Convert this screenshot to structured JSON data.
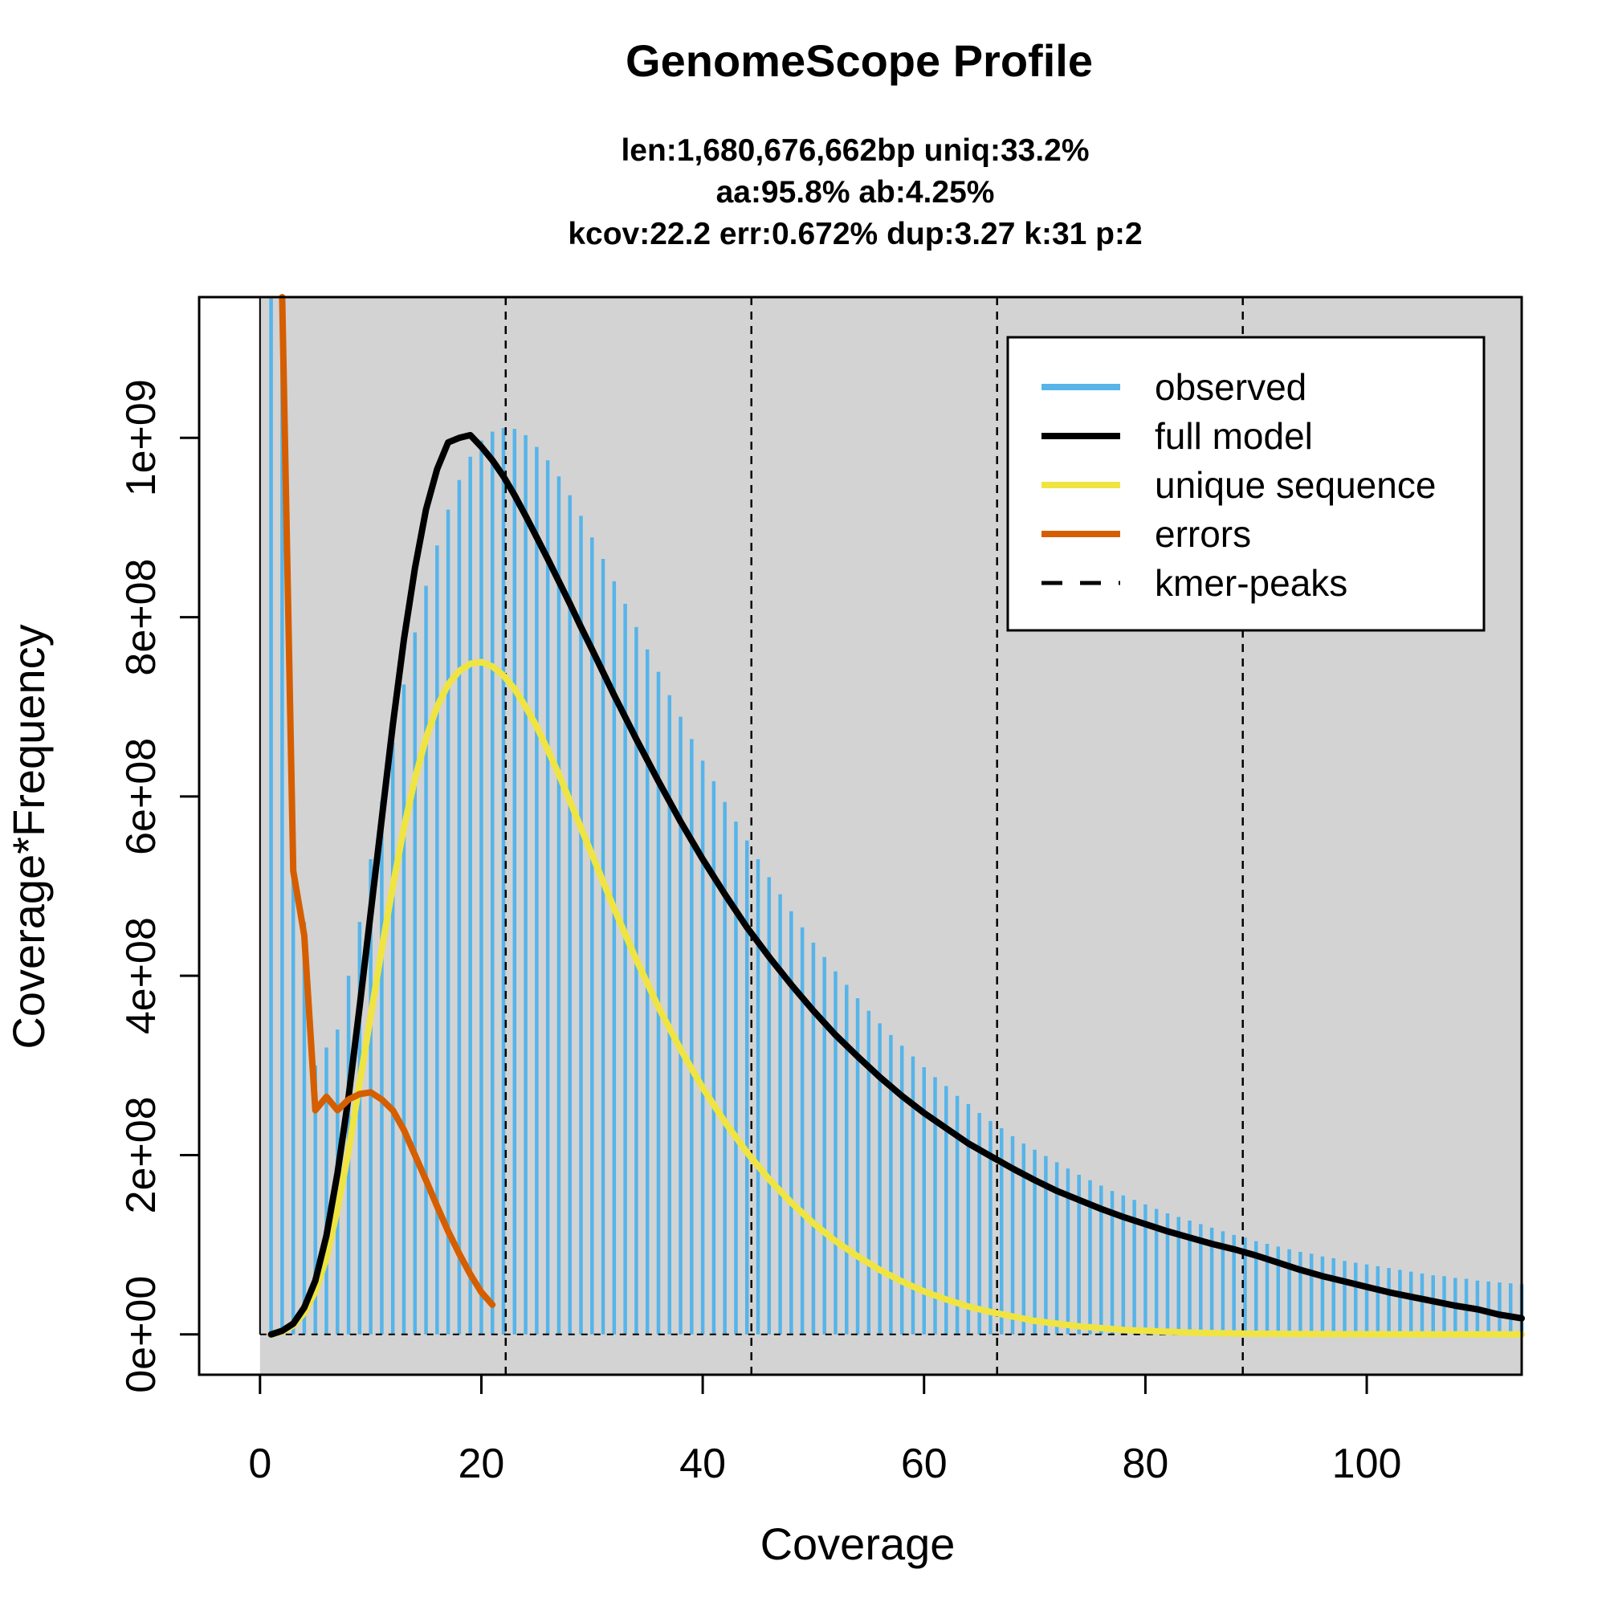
{
  "chart_data": {
    "type": "bar",
    "title": "GenomeScope Profile",
    "subtitle_lines": [
      "len:1,680,676,662bp uniq:33.2%",
      "aa:95.8% ab:4.25%",
      "kcov:22.2 err:0.672%  dup:3.27  k:31 p:2"
    ],
    "xlabel": "Coverage",
    "ylabel": "Coverage*Frequency",
    "xlim": [
      -5.5,
      114
    ],
    "ylim": [
      -45000000,
      1157000000
    ],
    "x_ticks": [
      0,
      20,
      40,
      60,
      80,
      100
    ],
    "x_tick_labels": [
      "0",
      "20",
      "40",
      "60",
      "80",
      "100"
    ],
    "y_ticks": [
      0,
      200000000,
      400000000,
      600000000,
      800000000,
      1000000000
    ],
    "y_tick_labels": [
      "0e+00",
      "2e+08",
      "4e+08",
      "6e+08",
      "8e+08",
      "1e+09"
    ],
    "kmer_peaks": [
      22.2,
      44.4,
      66.6,
      88.8
    ],
    "colors": {
      "observed": "#56b4e9",
      "full_model": "#000000",
      "unique_sequence": "#f0e442",
      "errors": "#d55e00",
      "panel_background": "#d3d3d3",
      "baseline_bar_region": "#ffffff"
    },
    "legend": {
      "placement": "top-right",
      "entries": [
        {
          "label": "observed",
          "color": "#56b4e9",
          "style": "solid"
        },
        {
          "label": "full model",
          "color": "#000000",
          "style": "solid"
        },
        {
          "label": "unique sequence",
          "color": "#f0e442",
          "style": "solid"
        },
        {
          "label": "errors",
          "color": "#d55e00",
          "style": "solid"
        },
        {
          "label": "kmer-peaks",
          "color": "#000000",
          "style": "dashed"
        }
      ]
    },
    "observed": {
      "x": [
        1,
        2,
        3,
        4,
        5,
        6,
        7,
        8,
        9,
        10,
        11,
        12,
        13,
        14,
        15,
        16,
        17,
        18,
        19,
        20,
        21,
        22,
        23,
        24,
        25,
        26,
        27,
        28,
        29,
        30,
        31,
        32,
        33,
        34,
        35,
        36,
        37,
        38,
        39,
        40,
        41,
        42,
        43,
        44,
        45,
        46,
        47,
        48,
        49,
        50,
        51,
        52,
        53,
        54,
        55,
        56,
        57,
        58,
        59,
        60,
        61,
        62,
        63,
        64,
        65,
        66,
        67,
        68,
        69,
        70,
        71,
        72,
        73,
        74,
        75,
        76,
        77,
        78,
        79,
        80,
        81,
        82,
        83,
        84,
        85,
        86,
        87,
        88,
        89,
        90,
        91,
        92,
        93,
        94,
        95,
        96,
        97,
        98,
        99,
        100,
        101,
        102,
        103,
        104,
        105,
        106,
        107,
        108,
        109,
        110,
        111,
        112,
        113,
        114
      ],
      "values": [
        1200000000,
        1200000000,
        520000000,
        460000000,
        300000000,
        320000000,
        340000000,
        400000000,
        460000000,
        530000000,
        595000000,
        660000000,
        725000000,
        783000000,
        835000000,
        880000000,
        920000000,
        953000000,
        979000000,
        997000000,
        1007000000,
        1011000000,
        1010000000,
        1003000000,
        990000000,
        975000000,
        957000000,
        936000000,
        913000000,
        889000000,
        865000000,
        840000000,
        815000000,
        789000000,
        764000000,
        739000000,
        713000000,
        689000000,
        664000000,
        640000000,
        617000000,
        594000000,
        572000000,
        551000000,
        530000000,
        510000000,
        491000000,
        472000000,
        454000000,
        437000000,
        421000000,
        405000000,
        390000000,
        375000000,
        361000000,
        347000000,
        334000000,
        322000000,
        310000000,
        298000000,
        287000000,
        277000000,
        266000000,
        257000000,
        247000000,
        238000000,
        230000000,
        221000000,
        213000000,
        206000000,
        199000000,
        192000000,
        185000000,
        178000000,
        172000000,
        166000000,
        160000000,
        155000000,
        150000000,
        145000000,
        140000000,
        135000000,
        131000000,
        127000000,
        123000000,
        119000000,
        115000000,
        111000000,
        108000000,
        104000000,
        101000000,
        98000000,
        95000000,
        92000000,
        90000000,
        87000000,
        85000000,
        82000000,
        80000000,
        78000000,
        76000000,
        74000000,
        72000000,
        70000000,
        68000000,
        66000000,
        65000000,
        63000000,
        62000000,
        60000000,
        59000000,
        58000000,
        57000000,
        56000000
      ]
    },
    "full_model": {
      "x": [
        1,
        2,
        3,
        4,
        5,
        6,
        7,
        8,
        9,
        10,
        11,
        12,
        13,
        14,
        15,
        16,
        17,
        18,
        19,
        20,
        21,
        22,
        23,
        24,
        25,
        26,
        27,
        28,
        29,
        30,
        32,
        34,
        36,
        38,
        40,
        42,
        44,
        46,
        48,
        50,
        52,
        54,
        56,
        58,
        60,
        62,
        64,
        66,
        68,
        70,
        72,
        74,
        76,
        78,
        80,
        82,
        84,
        86,
        88,
        90,
        92,
        94,
        96,
        98,
        100,
        102,
        104,
        106,
        108,
        110,
        112,
        114
      ],
      "values": [
        0,
        4000000,
        12000000,
        30000000,
        60000000,
        110000000,
        180000000,
        265000000,
        365000000,
        470000000,
        575000000,
        680000000,
        775000000,
        855000000,
        920000000,
        965000000,
        995000000,
        1000000000,
        1003000000,
        990000000,
        975000000,
        957000000,
        936000000,
        913000000,
        889000000,
        865000000,
        840000000,
        815000000,
        789000000,
        764000000,
        713000000,
        664000000,
        617000000,
        572000000,
        530000000,
        491000000,
        454000000,
        421000000,
        390000000,
        361000000,
        334000000,
        310000000,
        287000000,
        266000000,
        247000000,
        230000000,
        213000000,
        199000000,
        185000000,
        172000000,
        160000000,
        150000000,
        140000000,
        131000000,
        123000000,
        115000000,
        108000000,
        101000000,
        95000000,
        88000000,
        80000000,
        72000000,
        65000000,
        59000000,
        53000000,
        47000000,
        42000000,
        37000000,
        32000000,
        28000000,
        22000000,
        18000000
      ]
    },
    "unique_sequence": {
      "x": [
        1,
        2,
        3,
        4,
        5,
        6,
        7,
        8,
        9,
        10,
        11,
        12,
        13,
        14,
        15,
        16,
        17,
        18,
        19,
        20,
        21,
        22,
        23,
        24,
        25,
        26,
        27,
        28,
        30,
        32,
        34,
        36,
        38,
        40,
        42,
        44,
        46,
        48,
        50,
        52,
        54,
        56,
        58,
        60,
        62,
        64,
        66,
        68,
        70,
        72,
        74,
        76,
        78,
        80,
        82,
        84,
        86,
        88,
        90,
        95,
        100,
        105,
        110,
        114
      ],
      "values": [
        0,
        3000000,
        10000000,
        24000000,
        48000000,
        85000000,
        140000000,
        205000000,
        280000000,
        355000000,
        430000000,
        500000000,
        565000000,
        620000000,
        665000000,
        700000000,
        725000000,
        740000000,
        748000000,
        750000000,
        745000000,
        735000000,
        720000000,
        700000000,
        678000000,
        652000000,
        625000000,
        595000000,
        535000000,
        475000000,
        418000000,
        365000000,
        318000000,
        275000000,
        237000000,
        203000000,
        173000000,
        147000000,
        124000000,
        104000000,
        87000000,
        72000000,
        59000000,
        48000000,
        39000000,
        31000000,
        25000000,
        20000000,
        15000000,
        12000000,
        9000000,
        7000000,
        5000000,
        4000000,
        3000000,
        2000000,
        1500000,
        1000000,
        700000,
        300000,
        100000,
        50000,
        20000,
        0
      ]
    },
    "errors": {
      "x": [
        2,
        3,
        4,
        5,
        6,
        7,
        8,
        9,
        10,
        11,
        12,
        13,
        14,
        15,
        16,
        17,
        18,
        19,
        20,
        21
      ],
      "values": [
        1200000000,
        517000000,
        445000000,
        250000000,
        265000000,
        250000000,
        262000000,
        268000000,
        270000000,
        262000000,
        250000000,
        228000000,
        200000000,
        172000000,
        143000000,
        115000000,
        90000000,
        67000000,
        47000000,
        33000000
      ]
    }
  }
}
